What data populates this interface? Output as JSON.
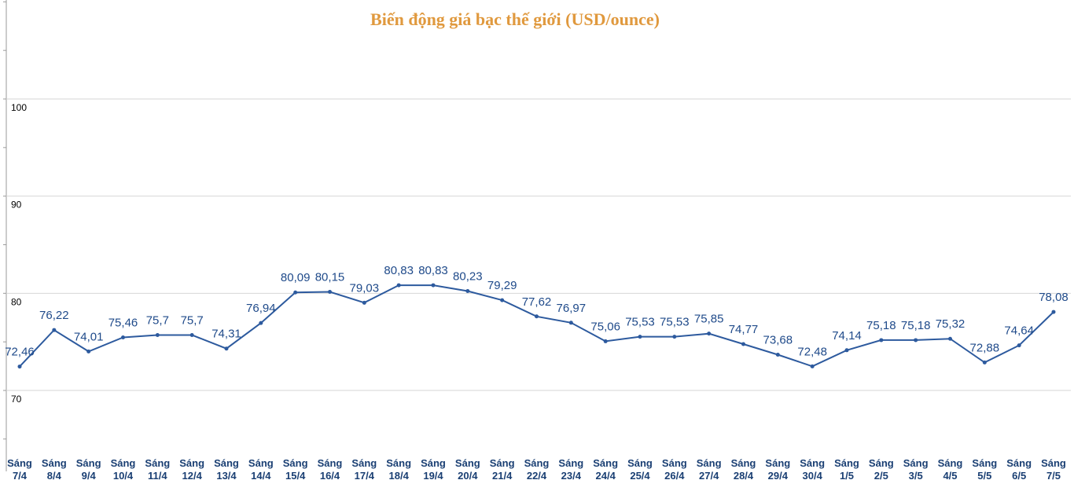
{
  "chart_data": {
    "type": "line",
    "title": "Biến động giá bạc thế giới (USD/ounce)",
    "xlabel": "",
    "ylabel": "",
    "ylim": [
      60,
      110
    ],
    "yticks": [
      "70",
      "80",
      "90",
      "100"
    ],
    "grid": true,
    "line_color": "#2d5a9e",
    "title_color": "#e0993e",
    "categories": [
      [
        "Sáng",
        "7/4"
      ],
      [
        "Sáng",
        "8/4"
      ],
      [
        "Sáng",
        "9/4"
      ],
      [
        "Sáng",
        "10/4"
      ],
      [
        "Sáng",
        "11/4"
      ],
      [
        "Sáng",
        "12/4"
      ],
      [
        "Sáng",
        "13/4"
      ],
      [
        "Sáng",
        "14/4"
      ],
      [
        "Sáng",
        "15/4"
      ],
      [
        "Sáng",
        "16/4"
      ],
      [
        "Sáng",
        "17/4"
      ],
      [
        "Sáng",
        "18/4"
      ],
      [
        "Sáng",
        "19/4"
      ],
      [
        "Sáng",
        "20/4"
      ],
      [
        "Sáng",
        "21/4"
      ],
      [
        "Sáng",
        "22/4"
      ],
      [
        "Sáng",
        "23/4"
      ],
      [
        "Sáng",
        "24/4"
      ],
      [
        "Sáng",
        "25/4"
      ],
      [
        "Sáng",
        "26/4"
      ],
      [
        "Sáng",
        "27/4"
      ],
      [
        "Sáng",
        "28/4"
      ],
      [
        "Sáng",
        "29/4"
      ],
      [
        "Sáng",
        "30/4"
      ],
      [
        "Sáng",
        "1/5"
      ],
      [
        "Sáng",
        "2/5"
      ],
      [
        "Sáng",
        "3/5"
      ],
      [
        "Sáng",
        "4/5"
      ],
      [
        "Sáng",
        "5/5"
      ],
      [
        "Sáng",
        "6/5"
      ],
      [
        "Sáng",
        "7/5"
      ]
    ],
    "values": [
      72.46,
      76.22,
      74.01,
      75.46,
      75.7,
      75.7,
      74.31,
      76.94,
      80.09,
      80.15,
      79.03,
      80.83,
      80.83,
      80.23,
      79.29,
      77.62,
      76.97,
      75.06,
      75.53,
      75.53,
      75.85,
      74.77,
      73.68,
      72.48,
      74.14,
      75.18,
      75.18,
      75.32,
      72.88,
      74.64,
      78.08
    ],
    "value_labels": [
      "72,46",
      "76,22",
      "74,01",
      "75,46",
      "75,7",
      "75,7",
      "74,31",
      "76,94",
      "80,09",
      "80,15",
      "79,03",
      "80,83",
      "80,83",
      "80,23",
      "79,29",
      "77,62",
      "76,97",
      "75,06",
      "75,53",
      "75,53",
      "75,85",
      "74,77",
      "73,68",
      "72,48",
      "74,14",
      "75,18",
      "75,18",
      "75,32",
      "72,88",
      "74,64",
      "78,08"
    ]
  }
}
